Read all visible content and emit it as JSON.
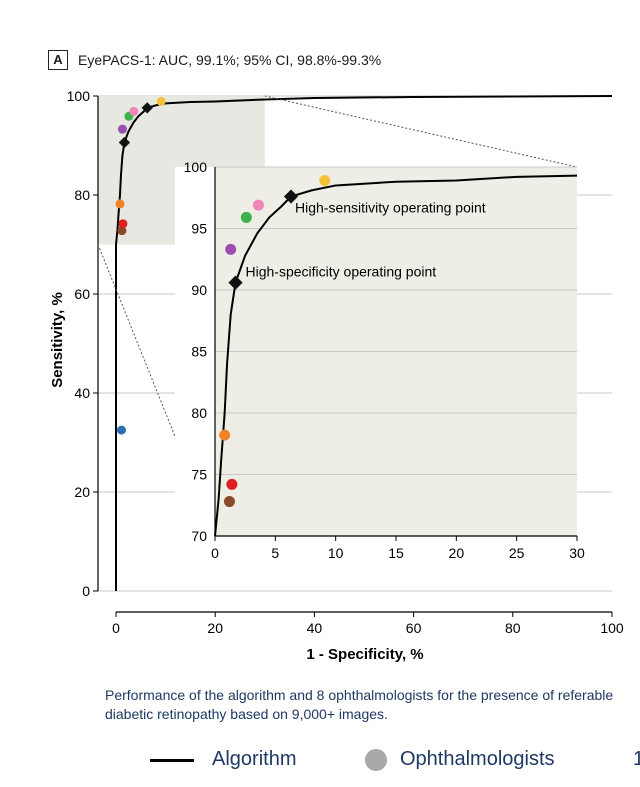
{
  "panel": {
    "letter": "A",
    "title": "EyePACS-1: AUC, 99.1%; 95% CI, 98.8%-99.3%"
  },
  "caption": "Performance of the algorithm and 8 ophthalmologists for the presence of referable diabetic retinopathy based on 9,000+ images.",
  "legend": {
    "algorithm": "Algorithm",
    "ophthalmologists": "Ophthalmologists",
    "extra": "1"
  },
  "colors": {
    "inset_bg": "#eeeee6",
    "zoom_bg": "#e8e8e2",
    "grid": "#c8c8c8",
    "curve": "#000000"
  },
  "chart_data": [
    {
      "type": "line",
      "title": "EyePACS-1: AUC, 99.1%; 95% CI, 98.8%-99.3%",
      "xlabel": "1 - Specificity, %",
      "ylabel": "Sensitivity, %",
      "xlim": [
        0,
        100
      ],
      "ylim": [
        0,
        100
      ],
      "xticks": [
        0,
        20,
        40,
        60,
        80,
        100
      ],
      "yticks": [
        0,
        20,
        40,
        60,
        80,
        100
      ],
      "grid": "horizontal",
      "zoom_region": {
        "x": [
          0,
          30
        ],
        "y": [
          70,
          100
        ]
      },
      "series": [
        {
          "name": "Algorithm",
          "points": [
            [
              0,
              0
            ],
            [
              0,
              20
            ],
            [
              0,
              40
            ],
            [
              0,
              60
            ],
            [
              0,
              70
            ],
            [
              0.3,
              73
            ],
            [
              0.5,
              76
            ],
            [
              0.8,
              80
            ],
            [
              1.0,
              84
            ],
            [
              1.3,
              88
            ],
            [
              1.7,
              90.6
            ],
            [
              2.5,
              92.8
            ],
            [
              3.5,
              94.6
            ],
            [
              4.5,
              95.9
            ],
            [
              5.5,
              96.8
            ],
            [
              6.3,
              97.6
            ],
            [
              8,
              98.1
            ],
            [
              10,
              98.5
            ],
            [
              15,
              98.8
            ],
            [
              20,
              98.9
            ],
            [
              30,
              99.3
            ],
            [
              40,
              99.6
            ],
            [
              60,
              99.8
            ],
            [
              80,
              99.9
            ],
            [
              100,
              100
            ]
          ]
        },
        {
          "name": "Ophthalmologists",
          "points": [
            {
              "x": 1.1,
              "y": 32.5,
              "color": "#2a6fb5"
            },
            {
              "x": 1.2,
              "y": 72.8,
              "color": "#8b4a2b"
            },
            {
              "x": 1.4,
              "y": 74.2,
              "color": "#e02020"
            },
            {
              "x": 0.8,
              "y": 78.2,
              "color": "#f0832a"
            },
            {
              "x": 1.3,
              "y": 93.3,
              "color": "#9b4fb0"
            },
            {
              "x": 2.6,
              "y": 95.9,
              "color": "#3bb34a"
            },
            {
              "x": 3.6,
              "y": 96.9,
              "color": "#ef86b8"
            },
            {
              "x": 9.1,
              "y": 98.9,
              "color": "#f4c236"
            }
          ]
        }
      ],
      "operating_points": [
        {
          "label": "High-specificity operating point",
          "x": 1.7,
          "y": 90.6
        },
        {
          "label": "High-sensitivity operating point",
          "x": 6.3,
          "y": 97.6
        }
      ]
    },
    {
      "type": "line",
      "title": "",
      "xlabel": "",
      "ylabel": "",
      "xlim": [
        0,
        30
      ],
      "ylim": [
        70,
        100
      ],
      "xticks": [
        0,
        5,
        10,
        15,
        20,
        25,
        30
      ],
      "yticks": [
        70,
        75,
        80,
        85,
        90,
        95,
        100
      ],
      "grid": "horizontal",
      "series": [
        {
          "name": "Algorithm",
          "points": [
            [
              0,
              70
            ],
            [
              0.3,
              73
            ],
            [
              0.5,
              76
            ],
            [
              0.8,
              80
            ],
            [
              1.0,
              84
            ],
            [
              1.3,
              88
            ],
            [
              1.7,
              90.6
            ],
            [
              2.5,
              92.8
            ],
            [
              3.5,
              94.6
            ],
            [
              4.5,
              95.9
            ],
            [
              5.5,
              96.8
            ],
            [
              6.3,
              97.6
            ],
            [
              8,
              98.1
            ],
            [
              10,
              98.5
            ],
            [
              15,
              98.8
            ],
            [
              20,
              98.9
            ],
            [
              25,
              99.2
            ],
            [
              30,
              99.3
            ]
          ]
        },
        {
          "name": "Ophthalmologists",
          "points": [
            {
              "x": 1.2,
              "y": 72.8,
              "color": "#8b4a2b"
            },
            {
              "x": 1.4,
              "y": 74.2,
              "color": "#e02020"
            },
            {
              "x": 0.8,
              "y": 78.2,
              "color": "#f0832a"
            },
            {
              "x": 1.3,
              "y": 93.3,
              "color": "#9b4fb0"
            },
            {
              "x": 2.6,
              "y": 95.9,
              "color": "#3bb34a"
            },
            {
              "x": 3.6,
              "y": 96.9,
              "color": "#ef86b8"
            },
            {
              "x": 9.1,
              "y": 98.9,
              "color": "#f4c236"
            }
          ]
        }
      ],
      "operating_points": [
        {
          "label": "High-specificity operating point",
          "x": 1.7,
          "y": 90.6
        },
        {
          "label": "High-sensitivity operating point",
          "x": 6.3,
          "y": 97.6
        }
      ]
    }
  ]
}
